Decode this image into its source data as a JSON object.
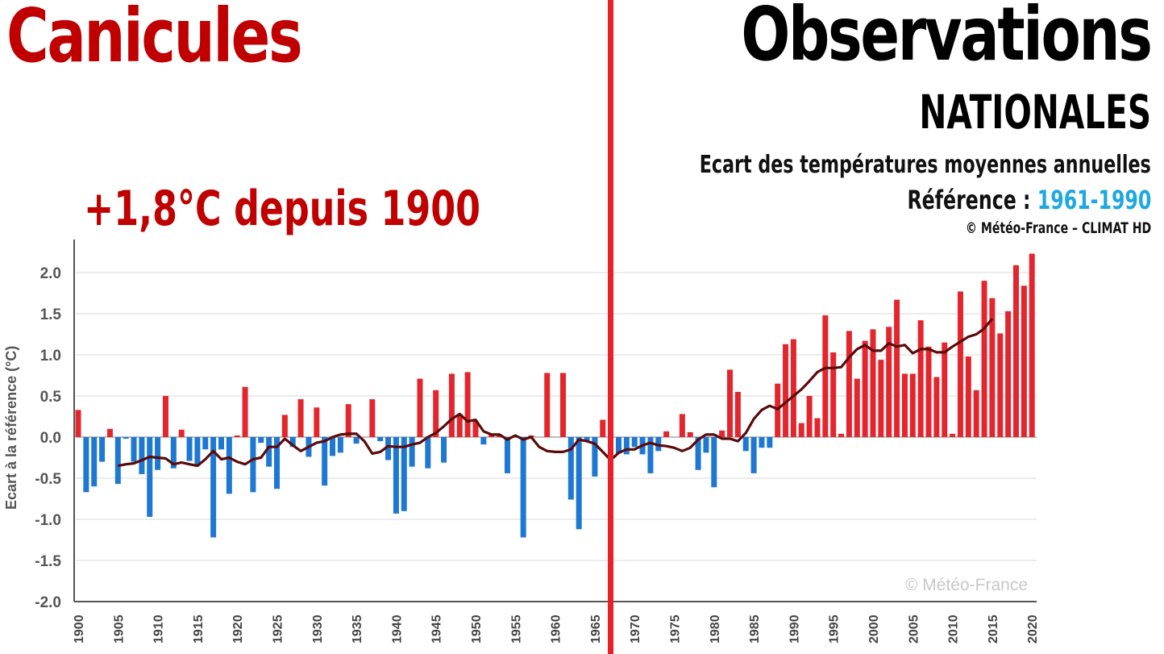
{
  "header": {
    "left_title": "Canicules",
    "right_title": "Observations",
    "right_subtitle": "NATIONALES",
    "description": "Ecart des températures moyennes annuelles",
    "reference_label": "Référence : ",
    "reference_years": "1961-1990",
    "credit": "© Météo-France – CLIMAT HD",
    "headline": "+1,8°C depuis 1900"
  },
  "colors": {
    "positive": "#e3262d",
    "negative": "#1e78d2",
    "trend": "#5a0a0a",
    "divider": "#e8202a",
    "title_red": "#c00000",
    "reference_blue": "#1ea8e0"
  },
  "chart_data": {
    "type": "bar",
    "title": "Ecart des températures moyennes annuelles",
    "xlabel": "",
    "ylabel": "Ecart à la référence (°C)",
    "ylim": [
      -2.0,
      2.4
    ],
    "yticks": [
      "2.0",
      "1.5",
      "1.0",
      "0.5",
      "0.0",
      "-0.5",
      "-1.0",
      "-1.5",
      "-2.0"
    ],
    "ytick_values": [
      2.0,
      1.5,
      1.0,
      0.5,
      0.0,
      -0.5,
      -1.0,
      -1.5,
      -2.0
    ],
    "xticks": [
      "1900",
      "1905",
      "1910",
      "1915",
      "1920",
      "1925",
      "1930",
      "1935",
      "1940",
      "1945",
      "1950",
      "1955",
      "1960",
      "1965",
      "1970",
      "1975",
      "1980",
      "1985",
      "1990",
      "1995",
      "2000",
      "2005",
      "2010",
      "2015",
      "2020"
    ],
    "grid": true,
    "watermark": "© Météo-France",
    "x_start": 1900,
    "values": [
      0.33,
      -0.67,
      -0.6,
      -0.3,
      0.1,
      -0.57,
      -0.02,
      -0.3,
      -0.45,
      -0.97,
      -0.4,
      0.5,
      -0.38,
      0.09,
      -0.29,
      -0.35,
      -0.15,
      -1.22,
      -0.15,
      -0.69,
      0.02,
      0.61,
      -0.67,
      -0.07,
      -0.36,
      -0.63,
      0.27,
      -0.12,
      0.46,
      -0.24,
      0.36,
      -0.59,
      -0.23,
      -0.19,
      0.4,
      -0.08,
      0.0,
      0.46,
      -0.05,
      -0.28,
      -0.93,
      -0.9,
      -0.36,
      0.71,
      -0.38,
      0.57,
      -0.31,
      0.77,
      0.28,
      0.79,
      0.2,
      -0.09,
      0.03,
      0.02,
      -0.44,
      0.02,
      -1.22,
      0.02,
      0.0,
      0.78,
      0.0,
      0.78,
      -0.76,
      -1.12,
      -0.05,
      -0.48,
      0.21,
      0.05,
      -0.2,
      -0.21,
      -0.12,
      -0.21,
      -0.44,
      -0.17,
      0.07,
      0.0,
      0.28,
      0.06,
      -0.4,
      -0.19,
      -0.61,
      0.08,
      0.82,
      0.55,
      -0.17,
      -0.44,
      -0.13,
      -0.13,
      0.65,
      1.13,
      1.19,
      0.17,
      0.5,
      0.23,
      1.48,
      1.03,
      0.04,
      1.29,
      0.71,
      1.17,
      1.31,
      0.94,
      1.34,
      1.67,
      0.77,
      0.77,
      1.42,
      1.1,
      0.73,
      1.15,
      0.04,
      1.77,
      0.98,
      0.57,
      1.9,
      1.69,
      1.26,
      1.53,
      2.09,
      1.84,
      2.23
    ],
    "trend_start": 1905,
    "trend": [
      -0.35,
      -0.33,
      -0.32,
      -0.28,
      -0.24,
      -0.25,
      -0.26,
      -0.33,
      -0.31,
      -0.33,
      -0.35,
      -0.27,
      -0.17,
      -0.27,
      -0.25,
      -0.3,
      -0.33,
      -0.27,
      -0.25,
      -0.12,
      -0.12,
      -0.02,
      -0.1,
      -0.17,
      -0.12,
      -0.07,
      -0.05,
      0.0,
      0.03,
      0.04,
      0.04,
      -0.05,
      -0.2,
      -0.18,
      -0.11,
      -0.12,
      -0.12,
      -0.09,
      -0.07,
      0.0,
      0.05,
      0.13,
      0.22,
      0.28,
      0.19,
      0.21,
      0.07,
      0.03,
      0.03,
      -0.03,
      0.02,
      -0.03,
      0.0,
      -0.12,
      -0.17,
      -0.18,
      -0.18,
      -0.15,
      -0.03,
      -0.05,
      -0.08,
      -0.18,
      -0.28,
      -0.19,
      -0.15,
      -0.15,
      -0.1,
      -0.07,
      -0.1,
      -0.11,
      -0.13,
      -0.17,
      -0.13,
      -0.03,
      0.03,
      0.03,
      -0.02,
      -0.02,
      -0.05,
      0.05,
      0.22,
      0.33,
      0.38,
      0.34,
      0.42,
      0.5,
      0.58,
      0.68,
      0.79,
      0.84,
      0.84,
      0.85,
      0.97,
      1.07,
      1.12,
      1.05,
      1.05,
      1.14,
      1.1,
      1.12,
      1.02,
      1.07,
      1.07,
      1.03,
      1.03,
      1.1,
      1.16,
      1.22,
      1.25,
      1.32,
      1.44
    ]
  }
}
